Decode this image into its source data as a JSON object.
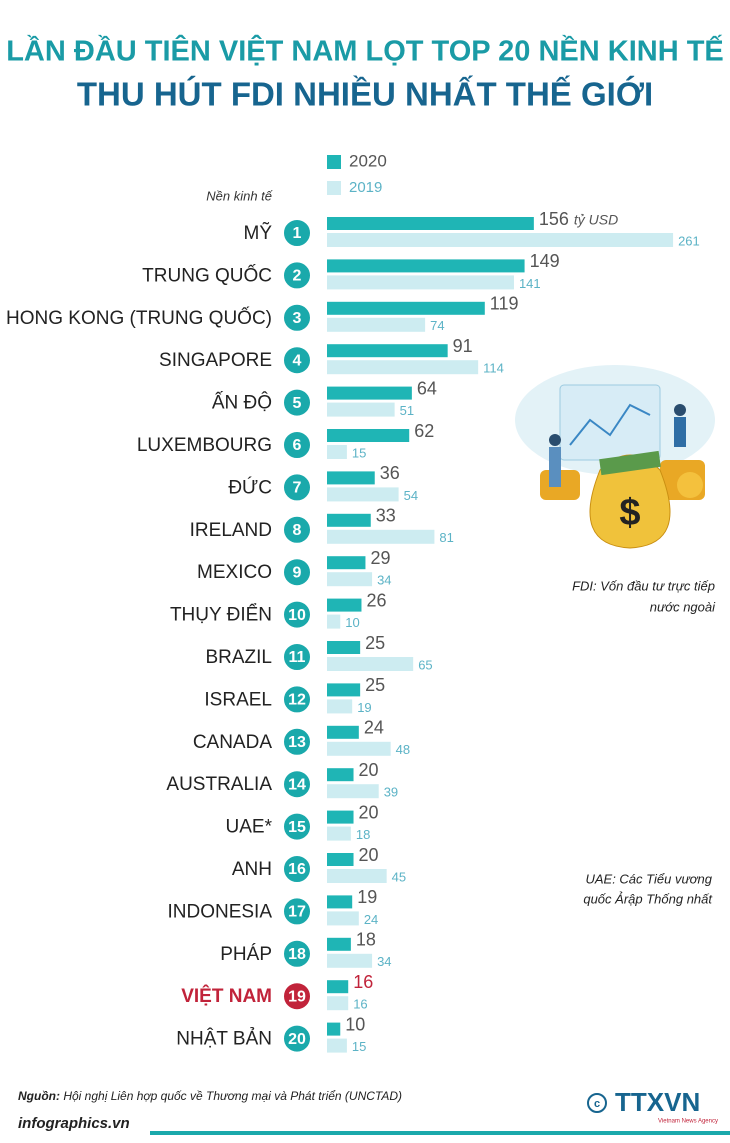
{
  "title_lines": [
    "LẦN ĐẦU TIÊN VIỆT NAM LỌT TOP 20 NỀN KINH TẾ",
    "THU HÚT FDI NHIỀU NHẤT THẾ GIỚI"
  ],
  "chart_data": {
    "type": "bar",
    "orientation": "horizontal",
    "category_label": "Nền kinh tế",
    "unit": "tỷ USD",
    "categories": [
      "MỸ",
      "TRUNG QUỐC",
      "HONG KONG (TRUNG QUỐC)",
      "SINGAPORE",
      "ẤN ĐỘ",
      "LUXEMBOURG",
      "ĐỨC",
      "IRELAND",
      "MEXICO",
      "THỤY ĐIỂN",
      "BRAZIL",
      "ISRAEL",
      "CANADA",
      "AUSTRALIA",
      "UAE*",
      "ANH",
      "INDONESIA",
      "PHÁP",
      "VIỆT NAM",
      "NHẬT BẢN"
    ],
    "ranks": [
      1,
      2,
      3,
      4,
      5,
      6,
      7,
      8,
      9,
      10,
      11,
      12,
      13,
      14,
      15,
      16,
      17,
      18,
      19,
      20
    ],
    "highlight": "VIỆT NAM",
    "highlight_color": "#c1233a",
    "rank_color": "#1aa9ab",
    "series": [
      {
        "name": "2020",
        "color": "#1fb5b5",
        "label_color": "#555555",
        "values": [
          156,
          149,
          119,
          91,
          64,
          62,
          36,
          33,
          29,
          26,
          25,
          25,
          24,
          20,
          20,
          20,
          19,
          18,
          16,
          10
        ]
      },
      {
        "name": "2019",
        "color": "#cdecf1",
        "label_color": "#5cb3c6",
        "values": [
          261,
          141,
          74,
          114,
          51,
          15,
          54,
          81,
          34,
          10,
          65,
          19,
          48,
          39,
          18,
          45,
          24,
          34,
          16,
          15
        ]
      }
    ]
  },
  "notes": [
    [
      "FDI: Vốn đầu tư trực tiếp",
      "nước ngoài"
    ],
    [
      "UAE: Các Tiểu vương",
      "quốc Ảrập Thống nhất"
    ]
  ],
  "source": {
    "label": "Nguồn:",
    "text": "Hội nghị Liên hợp quốc về Thương mại và Phát triển (UNCTAD)"
  },
  "website": "infographics.vn",
  "logo": "TTXVN",
  "logo_sub": "Vietnam News Agency"
}
